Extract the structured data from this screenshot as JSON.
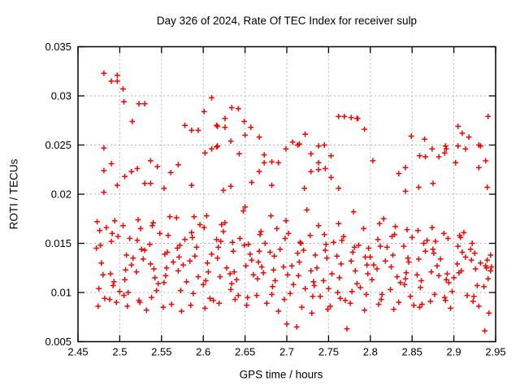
{
  "chart_data": {
    "type": "scatter",
    "title": "Day 326 of 2024, Rate Of TEC Index for receiver sulp",
    "xlabel": "GPS time / hours",
    "ylabel": "ROTI / TECUs",
    "xlim": [
      2.45,
      2.95
    ],
    "ylim": [
      0.005,
      0.035
    ],
    "x_ticks": [
      "2.45",
      "2.5",
      "2.55",
      "2.6",
      "2.65",
      "2.7",
      "2.75",
      "2.8",
      "2.85",
      "2.9",
      "2.95"
    ],
    "y_ticks": [
      "0.005",
      "0.01",
      "0.015",
      "0.02",
      "0.025",
      "0.03",
      "0.035"
    ],
    "grid": true,
    "legend": false,
    "marker": "plus",
    "colors": {
      "marker": "#ff0000",
      "grid": "#b3b3b3",
      "axis": "#000000",
      "background": "#ffffff"
    },
    "points": [
      [
        2.481,
        0.0323
      ],
      [
        2.49,
        0.0315
      ],
      [
        2.497,
        0.0321
      ],
      [
        2.497,
        0.0315
      ],
      [
        2.504,
        0.0307
      ],
      [
        2.505,
        0.0294
      ],
      [
        2.523,
        0.0292
      ],
      [
        2.53,
        0.0292
      ],
      [
        2.515,
        0.0274
      ],
      [
        2.578,
        0.027
      ],
      [
        2.586,
        0.0265
      ],
      [
        2.594,
        0.0265
      ],
      [
        2.601,
        0.0284
      ],
      [
        2.61,
        0.0298
      ],
      [
        2.616,
        0.027
      ],
      [
        2.481,
        0.0247
      ],
      [
        2.49,
        0.0231
      ],
      [
        2.481,
        0.0224
      ],
      [
        2.506,
        0.0218
      ],
      [
        2.514,
        0.0223
      ],
      [
        2.521,
        0.0226
      ],
      [
        2.537,
        0.0234
      ],
      [
        2.545,
        0.0228
      ],
      [
        2.561,
        0.0222
      ],
      [
        2.57,
        0.023
      ],
      [
        2.602,
        0.0242
      ],
      [
        2.61,
        0.0246
      ],
      [
        2.616,
        0.0248
      ],
      [
        2.53,
        0.0211
      ],
      [
        2.537,
        0.0211
      ],
      [
        2.553,
        0.0206
      ],
      [
        2.586,
        0.0209
      ],
      [
        2.497,
        0.0209
      ],
      [
        2.481,
        0.0202
      ],
      [
        2.634,
        0.0288
      ],
      [
        2.642,
        0.0287
      ],
      [
        2.626,
        0.0277
      ],
      [
        2.617,
        0.0269
      ],
      [
        2.626,
        0.0268
      ],
      [
        2.649,
        0.0274
      ],
      [
        2.657,
        0.0268
      ],
      [
        2.65,
        0.026
      ],
      [
        2.667,
        0.0258
      ],
      [
        2.633,
        0.0254
      ],
      [
        2.617,
        0.0249
      ],
      [
        2.643,
        0.0241
      ],
      [
        2.722,
        0.0261
      ],
      [
        2.699,
        0.0246
      ],
      [
        2.707,
        0.0253
      ],
      [
        2.713,
        0.025
      ],
      [
        2.715,
        0.0251
      ],
      [
        2.738,
        0.0249
      ],
      [
        2.745,
        0.025
      ],
      [
        2.729,
        0.0241
      ],
      [
        2.673,
        0.024
      ],
      [
        2.673,
        0.0232
      ],
      [
        2.682,
        0.0233
      ],
      [
        2.69,
        0.0232
      ],
      [
        2.667,
        0.0223
      ],
      [
        2.658,
        0.0212
      ],
      [
        2.682,
        0.0209
      ],
      [
        2.738,
        0.0232
      ],
      [
        2.738,
        0.0225
      ],
      [
        2.729,
        0.0223
      ],
      [
        2.746,
        0.0226
      ],
      [
        2.753,
        0.0239
      ],
      [
        2.753,
        0.0217
      ],
      [
        2.721,
        0.0206
      ],
      [
        2.762,
        0.0206
      ],
      [
        2.633,
        0.0208
      ],
      [
        2.624,
        0.0204
      ],
      [
        2.762,
        0.0279
      ],
      [
        2.769,
        0.0279
      ],
      [
        2.777,
        0.0278
      ],
      [
        2.784,
        0.0277
      ],
      [
        2.785,
        0.0277
      ],
      [
        2.793,
        0.0266
      ],
      [
        2.803,
        0.0234
      ],
      [
        2.849,
        0.0259
      ],
      [
        2.865,
        0.0256
      ],
      [
        2.874,
        0.0246
      ],
      [
        2.859,
        0.0239
      ],
      [
        2.866,
        0.0238
      ],
      [
        2.882,
        0.0238
      ],
      [
        2.842,
        0.0227
      ],
      [
        2.834,
        0.0221
      ],
      [
        2.842,
        0.0203
      ],
      [
        2.858,
        0.0207
      ],
      [
        2.875,
        0.0211
      ],
      [
        2.89,
        0.0249
      ],
      [
        2.891,
        0.0246
      ],
      [
        2.889,
        0.0242
      ],
      [
        2.905,
        0.0269
      ],
      [
        2.91,
        0.0262
      ],
      [
        2.918,
        0.0258
      ],
      [
        2.905,
        0.0249
      ],
      [
        2.914,
        0.0246
      ],
      [
        2.93,
        0.025
      ],
      [
        2.932,
        0.0249
      ],
      [
        2.902,
        0.0232
      ],
      [
        2.93,
        0.0227
      ],
      [
        2.941,
        0.0279
      ],
      [
        2.938,
        0.0234
      ],
      [
        2.94,
        0.0207
      ],
      [
        2.472,
        0.0145
      ],
      [
        2.488,
        0.0093
      ],
      [
        2.504,
        0.0168
      ],
      [
        2.52,
        0.0121
      ],
      [
        2.536,
        0.0149
      ],
      [
        2.552,
        0.0085
      ],
      [
        2.568,
        0.0176
      ],
      [
        2.584,
        0.0132
      ],
      [
        2.6,
        0.0108
      ],
      [
        2.616,
        0.0154
      ],
      [
        2.632,
        0.0119
      ],
      [
        2.648,
        0.0183
      ],
      [
        2.664,
        0.0097
      ],
      [
        2.68,
        0.0141
      ],
      [
        2.696,
        0.0126
      ],
      [
        2.712,
        0.0065
      ],
      [
        2.728,
        0.0158
      ],
      [
        2.744,
        0.0112
      ],
      [
        2.76,
        0.0137
      ],
      [
        2.776,
        0.0089
      ],
      [
        2.792,
        0.0165
      ],
      [
        2.808,
        0.0124
      ],
      [
        2.824,
        0.0103
      ],
      [
        2.84,
        0.0147
      ],
      [
        2.856,
        0.0118
      ],
      [
        2.872,
        0.0091
      ],
      [
        2.888,
        0.016
      ],
      [
        2.904,
        0.0129
      ],
      [
        2.92,
        0.0144
      ],
      [
        2.936,
        0.0106
      ],
      [
        2.474,
        0.0086
      ],
      [
        2.49,
        0.0152
      ],
      [
        2.506,
        0.0113
      ],
      [
        2.522,
        0.0174
      ],
      [
        2.538,
        0.0095
      ],
      [
        2.554,
        0.0139
      ],
      [
        2.57,
        0.0122
      ],
      [
        2.586,
        0.0161
      ],
      [
        2.602,
        0.0084
      ],
      [
        2.618,
        0.0146
      ],
      [
        2.634,
        0.0109
      ],
      [
        2.65,
        0.0187
      ],
      [
        2.666,
        0.0131
      ],
      [
        2.682,
        0.0098
      ],
      [
        2.698,
        0.0155
      ],
      [
        2.714,
        0.0117
      ],
      [
        2.73,
        0.0079
      ],
      [
        2.746,
        0.0143
      ],
      [
        2.762,
        0.017
      ],
      [
        2.778,
        0.0101
      ],
      [
        2.794,
        0.0136
      ],
      [
        2.81,
        0.0088
      ],
      [
        2.826,
        0.0157
      ],
      [
        2.842,
        0.0114
      ],
      [
        2.858,
        0.0134
      ],
      [
        2.874,
        0.0166
      ],
      [
        2.89,
        0.0092
      ],
      [
        2.906,
        0.012
      ],
      [
        2.922,
        0.015
      ],
      [
        2.938,
        0.0127
      ],
      [
        2.476,
        0.0163
      ],
      [
        2.492,
        0.0107
      ],
      [
        2.508,
        0.0138
      ],
      [
        2.524,
        0.009
      ],
      [
        2.54,
        0.0171
      ],
      [
        2.556,
        0.0125
      ],
      [
        2.572,
        0.0148
      ],
      [
        2.588,
        0.0099
      ],
      [
        2.604,
        0.0178
      ],
      [
        2.62,
        0.0116
      ],
      [
        2.636,
        0.0142
      ],
      [
        2.652,
        0.0087
      ],
      [
        2.668,
        0.0159
      ],
      [
        2.684,
        0.0123
      ],
      [
        2.7,
        0.0068
      ],
      [
        2.716,
        0.0151
      ],
      [
        2.732,
        0.0111
      ],
      [
        2.748,
        0.0135
      ],
      [
        2.764,
        0.0094
      ],
      [
        2.78,
        0.0182
      ],
      [
        2.796,
        0.0128
      ],
      [
        2.812,
        0.0147
      ],
      [
        2.828,
        0.0083
      ],
      [
        2.844,
        0.0164
      ],
      [
        2.86,
        0.0105
      ],
      [
        2.876,
        0.014
      ],
      [
        2.892,
        0.0119
      ],
      [
        2.908,
        0.0156
      ],
      [
        2.924,
        0.0096
      ],
      [
        2.94,
        0.0133
      ],
      [
        2.478,
        0.013
      ],
      [
        2.494,
        0.0173
      ],
      [
        2.51,
        0.01
      ],
      [
        2.526,
        0.0144
      ],
      [
        2.542,
        0.0115
      ],
      [
        2.558,
        0.0158
      ],
      [
        2.574,
        0.0081
      ],
      [
        2.59,
        0.0137
      ],
      [
        2.606,
        0.0121
      ],
      [
        2.622,
        0.0169
      ],
      [
        2.638,
        0.0093
      ],
      [
        2.654,
        0.0149
      ],
      [
        2.67,
        0.0126
      ],
      [
        2.686,
        0.0112
      ],
      [
        2.702,
        0.016
      ],
      [
        2.718,
        0.0085
      ],
      [
        2.734,
        0.0138
      ],
      [
        2.75,
        0.0104
      ],
      [
        2.766,
        0.0153
      ],
      [
        2.782,
        0.0122
      ],
      [
        2.798,
        0.0145
      ],
      [
        2.814,
        0.0098
      ],
      [
        2.83,
        0.0167
      ],
      [
        2.846,
        0.0131
      ],
      [
        2.862,
        0.0088
      ],
      [
        2.878,
        0.0152
      ],
      [
        2.894,
        0.011
      ],
      [
        2.91,
        0.0141
      ],
      [
        2.926,
        0.0124
      ],
      [
        2.942,
        0.0079
      ],
      [
        2.48,
        0.0118
      ],
      [
        2.496,
        0.009
      ],
      [
        2.512,
        0.0155
      ],
      [
        2.528,
        0.0134
      ],
      [
        2.544,
        0.0102
      ],
      [
        2.56,
        0.0177
      ],
      [
        2.576,
        0.0128
      ],
      [
        2.592,
        0.0146
      ],
      [
        2.608,
        0.0094
      ],
      [
        2.624,
        0.0162
      ],
      [
        2.64,
        0.0113
      ],
      [
        2.656,
        0.0139
      ],
      [
        2.672,
        0.012
      ],
      [
        2.688,
        0.0165
      ],
      [
        2.704,
        0.0099
      ],
      [
        2.72,
        0.0143
      ],
      [
        2.736,
        0.0125
      ],
      [
        2.752,
        0.0086
      ],
      [
        2.768,
        0.0157
      ],
      [
        2.784,
        0.0109
      ],
      [
        2.8,
        0.0136
      ],
      [
        2.816,
        0.0175
      ],
      [
        2.832,
        0.0116
      ],
      [
        2.848,
        0.0096
      ],
      [
        2.864,
        0.015
      ],
      [
        2.88,
        0.0127
      ],
      [
        2.896,
        0.0084
      ],
      [
        2.912,
        0.0161
      ],
      [
        2.928,
        0.0107
      ],
      [
        2.944,
        0.0138
      ],
      [
        2.473,
        0.0172
      ],
      [
        2.489,
        0.0119
      ],
      [
        2.505,
        0.0097
      ],
      [
        2.521,
        0.0153
      ],
      [
        2.537,
        0.0129
      ],
      [
        2.553,
        0.011
      ],
      [
        2.569,
        0.0145
      ],
      [
        2.585,
        0.0087
      ],
      [
        2.601,
        0.0166
      ],
      [
        2.617,
        0.0135
      ],
      [
        2.633,
        0.0103
      ],
      [
        2.649,
        0.0148
      ],
      [
        2.665,
        0.0114
      ],
      [
        2.681,
        0.0178
      ],
      [
        2.697,
        0.0093
      ],
      [
        2.713,
        0.014
      ],
      [
        2.729,
        0.0122
      ],
      [
        2.745,
        0.0159
      ],
      [
        2.761,
        0.01
      ],
      [
        2.777,
        0.0132
      ],
      [
        2.793,
        0.0082
      ],
      [
        2.809,
        0.0154
      ],
      [
        2.825,
        0.0126
      ],
      [
        2.841,
        0.0108
      ],
      [
        2.857,
        0.0163
      ],
      [
        2.873,
        0.0121
      ],
      [
        2.889,
        0.0095
      ],
      [
        2.905,
        0.0147
      ],
      [
        2.921,
        0.0133
      ],
      [
        2.937,
        0.0061
      ],
      [
        2.475,
        0.0104
      ],
      [
        2.491,
        0.016
      ],
      [
        2.507,
        0.0123
      ],
      [
        2.523,
        0.0092
      ],
      [
        2.539,
        0.0168
      ],
      [
        2.555,
        0.0117
      ],
      [
        2.571,
        0.0136
      ],
      [
        2.587,
        0.0156
      ],
      [
        2.603,
        0.0112
      ],
      [
        2.619,
        0.0089
      ],
      [
        2.635,
        0.0151
      ],
      [
        2.651,
        0.0127
      ],
      [
        2.667,
        0.0142
      ],
      [
        2.683,
        0.0106
      ],
      [
        2.699,
        0.0173
      ],
      [
        2.715,
        0.0131
      ],
      [
        2.731,
        0.0096
      ],
      [
        2.747,
        0.0149
      ],
      [
        2.763,
        0.0115
      ],
      [
        2.779,
        0.0141
      ],
      [
        2.795,
        0.0098
      ],
      [
        2.811,
        0.017
      ],
      [
        2.827,
        0.0138
      ],
      [
        2.843,
        0.012
      ],
      [
        2.859,
        0.0085
      ],
      [
        2.875,
        0.0144
      ],
      [
        2.891,
        0.0113
      ],
      [
        2.907,
        0.0158
      ],
      [
        2.923,
        0.0091
      ],
      [
        2.939,
        0.0125
      ],
      [
        2.477,
        0.0148
      ],
      [
        2.493,
        0.0111
      ],
      [
        2.509,
        0.0086
      ],
      [
        2.525,
        0.0165
      ],
      [
        2.541,
        0.0124
      ],
      [
        2.557,
        0.0141
      ],
      [
        2.573,
        0.0102
      ],
      [
        2.589,
        0.0177
      ],
      [
        2.605,
        0.013
      ],
      [
        2.621,
        0.0152
      ],
      [
        2.637,
        0.0121
      ],
      [
        2.653,
        0.0095
      ],
      [
        2.669,
        0.0162
      ],
      [
        2.685,
        0.0137
      ],
      [
        2.701,
        0.0118
      ],
      [
        2.717,
        0.015
      ],
      [
        2.733,
        0.0107
      ],
      [
        2.749,
        0.0083
      ],
      [
        2.765,
        0.0129
      ],
      [
        2.781,
        0.0146
      ],
      [
        2.797,
        0.0119
      ],
      [
        2.813,
        0.0093
      ],
      [
        2.829,
        0.0159
      ],
      [
        2.845,
        0.0135
      ],
      [
        2.861,
        0.0112
      ],
      [
        2.877,
        0.0098
      ],
      [
        2.893,
        0.0155
      ],
      [
        2.909,
        0.0122
      ],
      [
        2.925,
        0.014
      ],
      [
        2.941,
        0.0114
      ],
      [
        2.482,
        0.0094
      ],
      [
        2.498,
        0.0157
      ],
      [
        2.514,
        0.0128
      ],
      [
        2.53,
        0.0143
      ],
      [
        2.546,
        0.0109
      ],
      [
        2.562,
        0.0088
      ],
      [
        2.578,
        0.0154
      ],
      [
        2.594,
        0.0116
      ],
      [
        2.61,
        0.0139
      ],
      [
        2.626,
        0.0171
      ],
      [
        2.642,
        0.0097
      ],
      [
        2.658,
        0.0133
      ],
      [
        2.674,
        0.015
      ],
      [
        2.69,
        0.0081
      ],
      [
        2.706,
        0.0127
      ],
      [
        2.722,
        0.0104
      ],
      [
        2.738,
        0.0168
      ],
      [
        2.754,
        0.0119
      ],
      [
        2.77,
        0.0092
      ],
      [
        2.786,
        0.0148
      ],
      [
        2.802,
        0.0113
      ],
      [
        2.818,
        0.0132
      ],
      [
        2.834,
        0.009
      ],
      [
        2.85,
        0.0156
      ],
      [
        2.866,
        0.0142
      ],
      [
        2.882,
        0.0117
      ],
      [
        2.898,
        0.0101
      ],
      [
        2.914,
        0.0136
      ],
      [
        2.93,
        0.0086
      ],
      [
        2.944,
        0.0122
      ],
      [
        2.484,
        0.0166
      ],
      [
        2.5,
        0.0101
      ],
      [
        2.516,
        0.0135
      ],
      [
        2.532,
        0.0082
      ],
      [
        2.548,
        0.016
      ],
      [
        2.564,
        0.0131
      ],
      [
        2.58,
        0.0111
      ],
      [
        2.596,
        0.0169
      ],
      [
        2.612,
        0.0092
      ],
      [
        2.628,
        0.0125
      ],
      [
        2.644,
        0.0155
      ],
      [
        2.66,
        0.0118
      ],
      [
        2.676,
        0.0089
      ],
      [
        2.692,
        0.0144
      ],
      [
        2.708,
        0.0108
      ],
      [
        2.724,
        0.0184
      ],
      [
        2.74,
        0.0096
      ],
      [
        2.756,
        0.0151
      ],
      [
        2.772,
        0.0063
      ],
      [
        2.788,
        0.0105
      ],
      [
        2.804,
        0.0128
      ],
      [
        2.82,
        0.0146
      ],
      [
        2.836,
        0.011
      ],
      [
        2.852,
        0.0087
      ],
      [
        2.868,
        0.0153
      ],
      [
        2.884,
        0.0134
      ],
      [
        2.9,
        0.0115
      ],
      [
        2.916,
        0.0097
      ],
      [
        2.932,
        0.013
      ],
      [
        2.945,
        0.0126
      ]
    ]
  }
}
